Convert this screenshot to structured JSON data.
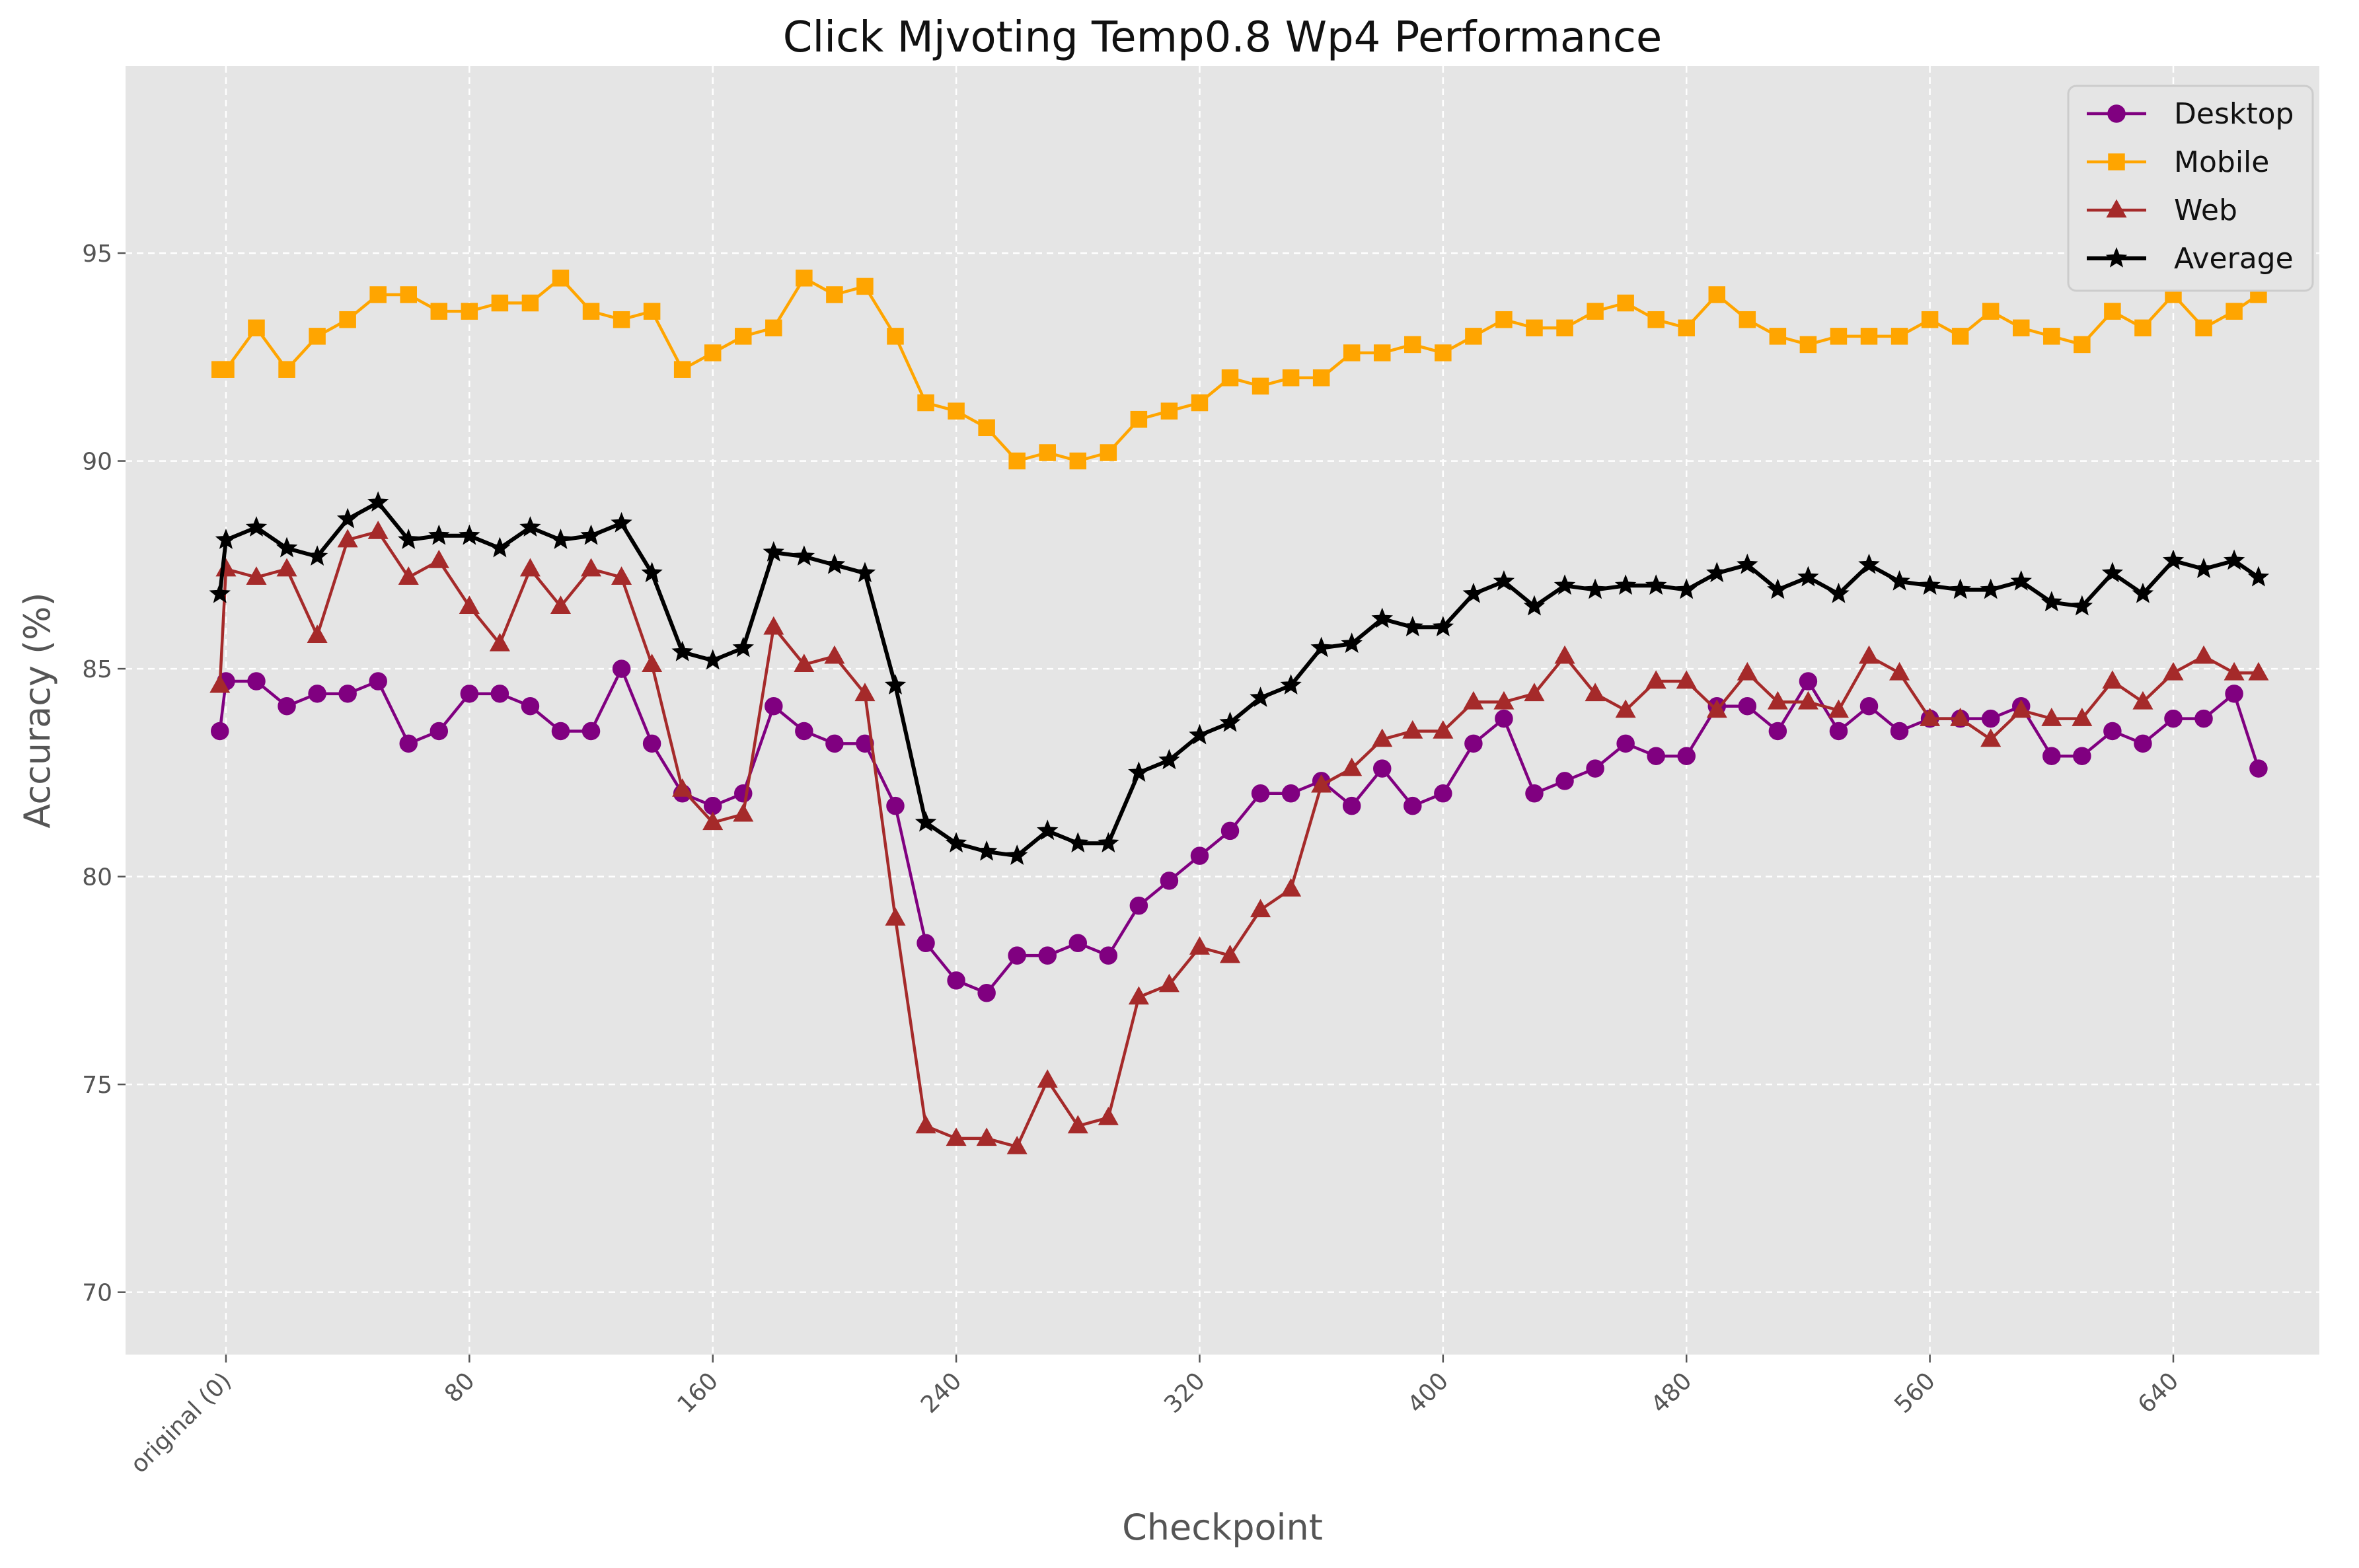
{
  "chart_data": {
    "type": "line",
    "title": "Click Mjvoting Temp0.8 Wp4 Performance",
    "xlabel": "Checkpoint",
    "ylabel": "Accuracy (%)",
    "xlim": [
      -33,
      688
    ],
    "ylim": [
      68.5,
      99.5
    ],
    "yticks": [
      70,
      75,
      80,
      85,
      90,
      95
    ],
    "xticks": [
      {
        "value": 0,
        "label": "original (0)"
      },
      {
        "value": 80,
        "label": "80"
      },
      {
        "value": 160,
        "label": "160"
      },
      {
        "value": 240,
        "label": "240"
      },
      {
        "value": 320,
        "label": "320"
      },
      {
        "value": 400,
        "label": "400"
      },
      {
        "value": 480,
        "label": "480"
      },
      {
        "value": 560,
        "label": "560"
      },
      {
        "value": 640,
        "label": "640"
      }
    ],
    "grid": true,
    "legend_position": "top-right",
    "x": [
      -2,
      0,
      10,
      20,
      30,
      40,
      50,
      60,
      70,
      80,
      90,
      100,
      110,
      120,
      130,
      140,
      150,
      160,
      170,
      180,
      190,
      200,
      210,
      220,
      230,
      240,
      250,
      260,
      270,
      280,
      290,
      300,
      310,
      320,
      330,
      340,
      350,
      360,
      370,
      380,
      390,
      400,
      410,
      420,
      430,
      440,
      450,
      460,
      470,
      480,
      490,
      500,
      510,
      520,
      530,
      540,
      550,
      560,
      570,
      580,
      590,
      600,
      610,
      620,
      630,
      640,
      650,
      660,
      668
    ],
    "series": [
      {
        "name": "Desktop",
        "color": "#800080",
        "marker": "circle",
        "values": [
          83.5,
          84.7,
          84.7,
          84.1,
          84.4,
          84.4,
          84.7,
          83.2,
          83.5,
          84.4,
          84.4,
          84.1,
          83.5,
          83.5,
          85.0,
          83.2,
          82.0,
          81.7,
          82.0,
          84.1,
          83.5,
          83.2,
          83.2,
          81.7,
          78.4,
          77.5,
          77.2,
          78.1,
          78.1,
          78.4,
          78.1,
          79.3,
          79.9,
          80.5,
          81.1,
          82.0,
          82.0,
          82.3,
          81.7,
          82.6,
          81.7,
          82.0,
          83.2,
          83.8,
          82.0,
          82.3,
          82.6,
          83.2,
          82.9,
          82.9,
          84.1,
          84.1,
          83.5,
          84.7,
          83.5,
          84.1,
          83.5,
          83.8,
          83.8,
          83.8,
          84.1,
          82.9,
          82.9,
          83.5,
          83.2,
          83.8,
          83.8,
          84.4,
          82.6
        ]
      },
      {
        "name": "Mobile",
        "color": "#FFA500",
        "marker": "square",
        "values": [
          92.2,
          92.2,
          93.2,
          92.2,
          93.0,
          93.4,
          94.0,
          94.0,
          93.6,
          93.6,
          93.8,
          93.8,
          94.4,
          93.6,
          93.4,
          93.6,
          92.2,
          92.6,
          93.0,
          93.2,
          94.4,
          94.0,
          94.2,
          93.0,
          91.4,
          91.2,
          90.8,
          90.0,
          90.2,
          90.0,
          90.2,
          91.0,
          91.2,
          91.4,
          92.0,
          91.8,
          92.0,
          92.0,
          92.6,
          92.6,
          92.8,
          92.6,
          93.0,
          93.4,
          93.2,
          93.2,
          93.6,
          93.8,
          93.4,
          93.2,
          94.0,
          93.4,
          93.0,
          92.8,
          93.0,
          93.0,
          93.0,
          93.4,
          93.0,
          93.6,
          93.2,
          93.0,
          92.8,
          93.6,
          93.2,
          94.0,
          93.2,
          93.6,
          94.0
        ]
      },
      {
        "name": "Web",
        "color": "#A52A2A",
        "marker": "triangle",
        "values": [
          84.6,
          87.4,
          87.2,
          87.4,
          85.8,
          88.1,
          88.3,
          87.2,
          87.6,
          86.5,
          85.6,
          87.4,
          86.5,
          87.4,
          87.2,
          85.1,
          82.1,
          81.3,
          81.5,
          86.0,
          85.1,
          85.3,
          84.4,
          79.0,
          74.0,
          73.7,
          73.7,
          73.5,
          75.1,
          74.0,
          74.2,
          77.1,
          77.4,
          78.3,
          78.1,
          79.2,
          79.7,
          82.2,
          82.6,
          83.3,
          83.5,
          83.5,
          84.2,
          84.2,
          84.4,
          85.3,
          84.4,
          84.0,
          84.7,
          84.7,
          84.0,
          84.9,
          84.2,
          84.2,
          84.0,
          85.3,
          84.9,
          83.8,
          83.8,
          83.3,
          84.0,
          83.8,
          83.8,
          84.7,
          84.2,
          84.9,
          85.3,
          84.9,
          84.9
        ]
      },
      {
        "name": "Average",
        "color": "#000000",
        "marker": "star",
        "values": [
          86.8,
          88.1,
          88.4,
          87.9,
          87.7,
          88.6,
          89.0,
          88.1,
          88.2,
          88.2,
          87.9,
          88.4,
          88.1,
          88.2,
          88.5,
          87.3,
          85.4,
          85.2,
          85.5,
          87.8,
          87.7,
          87.5,
          87.3,
          84.6,
          81.3,
          80.8,
          80.6,
          80.5,
          81.1,
          80.8,
          80.8,
          82.5,
          82.8,
          83.4,
          83.7,
          84.3,
          84.6,
          85.5,
          85.6,
          86.2,
          86.0,
          86.0,
          86.8,
          87.1,
          86.5,
          87.0,
          86.9,
          87.0,
          87.0,
          86.9,
          87.3,
          87.5,
          86.9,
          87.2,
          86.8,
          87.5,
          87.1,
          87.0,
          86.9,
          86.9,
          87.1,
          86.6,
          86.5,
          87.3,
          86.8,
          87.6,
          87.4,
          87.6,
          87.2
        ]
      }
    ]
  }
}
